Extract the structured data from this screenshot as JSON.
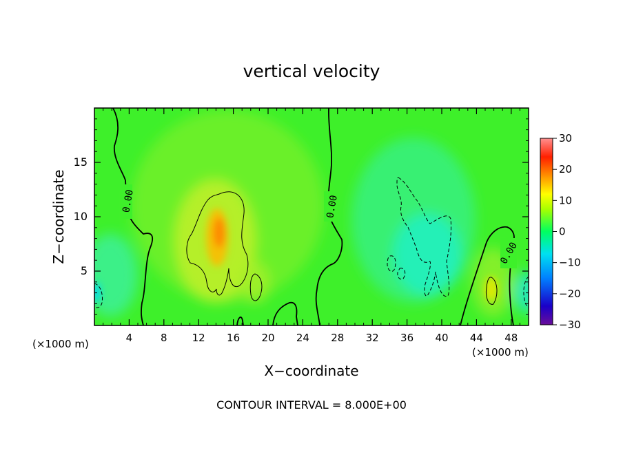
{
  "chart_data": {
    "type": "heatmap",
    "title": "vertical velocity",
    "xlabel": "X−coordinate",
    "ylabel": "Z−coordinate",
    "x_unit_left": "(×1000 m)",
    "x_unit_right": "(×1000 m)",
    "footnote": "CONTOUR INTERVAL = 8.000E+00",
    "xlim": [
      0,
      50
    ],
    "ylim": [
      0,
      20
    ],
    "x_ticks": [
      4,
      8,
      12,
      16,
      20,
      24,
      28,
      32,
      36,
      40,
      44,
      48
    ],
    "x_tick_labels": [
      "4",
      "8",
      "12",
      "16",
      "20",
      "24",
      "28",
      "32",
      "36",
      "40",
      "44",
      "48"
    ],
    "y_ticks": [
      5,
      10,
      15
    ],
    "y_tick_labels": [
      "5",
      "10",
      "15"
    ],
    "colorbar": {
      "range": [
        -30,
        30
      ],
      "ticks": [
        30,
        20,
        10,
        0,
        -10,
        -20,
        -30
      ],
      "tick_labels": [
        "30",
        "20",
        "10",
        "0",
        "−10",
        "−20",
        "−30"
      ]
    },
    "contour_labels": [
      "0.00",
      "0.00",
      "0.00"
    ],
    "features": [
      {
        "kind": "updraft",
        "x": 14.5,
        "z": 8,
        "value": 17
      },
      {
        "kind": "updraft",
        "x": 45.5,
        "z": 3,
        "value": 10
      },
      {
        "kind": "updraft",
        "x": 18.5,
        "z": 3.5,
        "value": 7
      },
      {
        "kind": "downdraft",
        "x": 39,
        "z": 7,
        "value": -10
      },
      {
        "kind": "downdraft",
        "x": 0.5,
        "z": 3,
        "value": -8
      },
      {
        "kind": "downdraft",
        "x": 50,
        "z": 3,
        "value": -8
      }
    ]
  }
}
